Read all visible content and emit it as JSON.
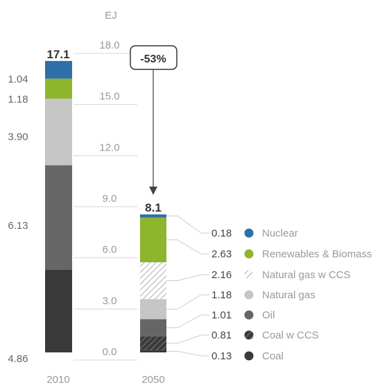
{
  "chart_data": {
    "type": "bar",
    "stacked": true,
    "unit": "EJ",
    "yticks": [
      "18.0",
      "15.0",
      "12.0",
      "9.0",
      "6.0",
      "3.0",
      "0.0"
    ],
    "categories": [
      "2010",
      "2050"
    ],
    "totals": [
      "17.1",
      "8.1"
    ],
    "change": "-53%",
    "left_labels": [
      "1.04",
      "1.18",
      "3.90",
      "6.13",
      "4.86"
    ],
    "right_labels": [
      "0.18",
      "2.63",
      "2.16",
      "1.18",
      "1.01",
      "0.81",
      "0.13"
    ],
    "series_2010": [
      {
        "name": "Coal",
        "value": 4.86,
        "color": "#3a3a3a",
        "hatched": false
      },
      {
        "name": "Oil",
        "value": 6.13,
        "color": "#666666",
        "hatched": false
      },
      {
        "name": "Natural gas",
        "value": 3.9,
        "color": "#c6c6c6",
        "hatched": false
      },
      {
        "name": "Renewables & Biomass",
        "value": 1.18,
        "color": "#8db52e",
        "hatched": false
      },
      {
        "name": "Nuclear",
        "value": 1.04,
        "color": "#2f6fa8",
        "hatched": false
      }
    ],
    "series_2050": [
      {
        "name": "Coal",
        "value": 0.13,
        "color": "#3a3a3a",
        "hatched": false
      },
      {
        "name": "Coal w CCS",
        "value": 0.81,
        "color": "#3a3a3a",
        "hatched": true
      },
      {
        "name": "Oil",
        "value": 1.01,
        "color": "#666666",
        "hatched": false
      },
      {
        "name": "Natural gas",
        "value": 1.18,
        "color": "#c6c6c6",
        "hatched": false
      },
      {
        "name": "Natural gas w CCS",
        "value": 2.16,
        "color": "#c6c6c6",
        "hatched": true
      },
      {
        "name": "Renewables & Biomass",
        "value": 2.63,
        "color": "#8db52e",
        "hatched": false
      },
      {
        "name": "Nuclear",
        "value": 0.18,
        "color": "#2f6fa8",
        "hatched": false
      }
    ],
    "legend": [
      {
        "name": "Nuclear",
        "color": "#2f6fa8",
        "hatched": false
      },
      {
        "name": "Renewables & Biomass",
        "color": "#8db52e",
        "hatched": false
      },
      {
        "name": "Natural gas w CCS",
        "color": "#c6c6c6",
        "hatched": true
      },
      {
        "name": "Natural gas",
        "color": "#c6c6c6",
        "hatched": false
      },
      {
        "name": "Oil",
        "color": "#666666",
        "hatched": false
      },
      {
        "name": "Coal w CCS",
        "color": "#3a3a3a",
        "hatched": true
      },
      {
        "name": "Coal",
        "color": "#3a3a3a",
        "hatched": false
      }
    ],
    "ylim": [
      0,
      18
    ],
    "grid": true
  }
}
